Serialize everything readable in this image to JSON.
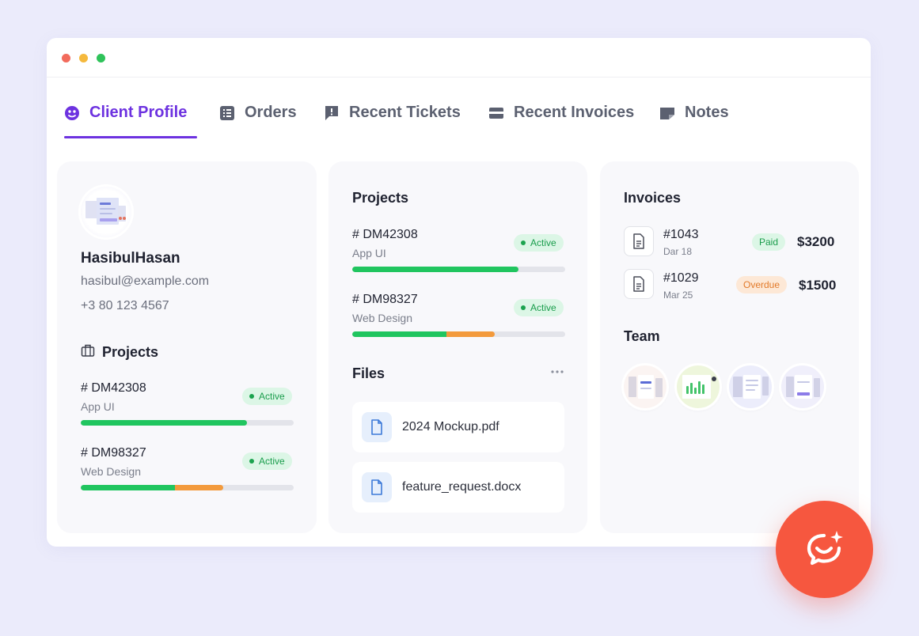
{
  "colors": {
    "background": "#ebebfb",
    "accent": "#6d32e0",
    "active_green": "#20c55f",
    "progress_orange": "#f39a3c",
    "fab": "#f6573f",
    "dot_red": "#f26b5c",
    "dot_yellow": "#f5b93d",
    "dot_green": "#2fc35a"
  },
  "tabs": [
    {
      "label": "Client Profile",
      "icon": "user-circle-icon",
      "active": true
    },
    {
      "label": "Orders",
      "icon": "list-icon",
      "active": false
    },
    {
      "label": "Recent Tickets",
      "icon": "alert-message-icon",
      "active": false
    },
    {
      "label": "Recent Invoices",
      "icon": "credit-card-icon",
      "active": false
    },
    {
      "label": "Notes",
      "icon": "note-icon",
      "active": false
    }
  ],
  "profile": {
    "name": "HasibulHasan",
    "email": "hasibul@example.com",
    "phone": "+3 80 123 4567",
    "projects_title": "Projects",
    "projects": [
      {
        "id": "# DM42308",
        "type": "App UI",
        "status": "Active",
        "progress": 0.78
      },
      {
        "id": "# DM98327",
        "type": "Web Design",
        "status": "Active",
        "progress": 0.67
      }
    ]
  },
  "middle": {
    "projects_title": "Projects",
    "projects": [
      {
        "id": "# DM42308",
        "type": "App UI",
        "status": "Active",
        "progress": 0.78
      },
      {
        "id": "# DM98327",
        "type": "Web Design",
        "status": "Active",
        "progress": 0.67
      }
    ],
    "files_title": "Files",
    "files": [
      {
        "name": "2024 Mockup.pdf"
      },
      {
        "name": "feature_request.docx"
      }
    ]
  },
  "invoices": {
    "title": "Invoices",
    "items": [
      {
        "number": "#1043",
        "date": "Dar 18",
        "status": "Paid",
        "amount": "$3200"
      },
      {
        "number": "#1029",
        "date": "Mar 25",
        "status": "Overdue",
        "amount": "$1500"
      }
    ],
    "team_title": "Team",
    "team_count": 4
  }
}
